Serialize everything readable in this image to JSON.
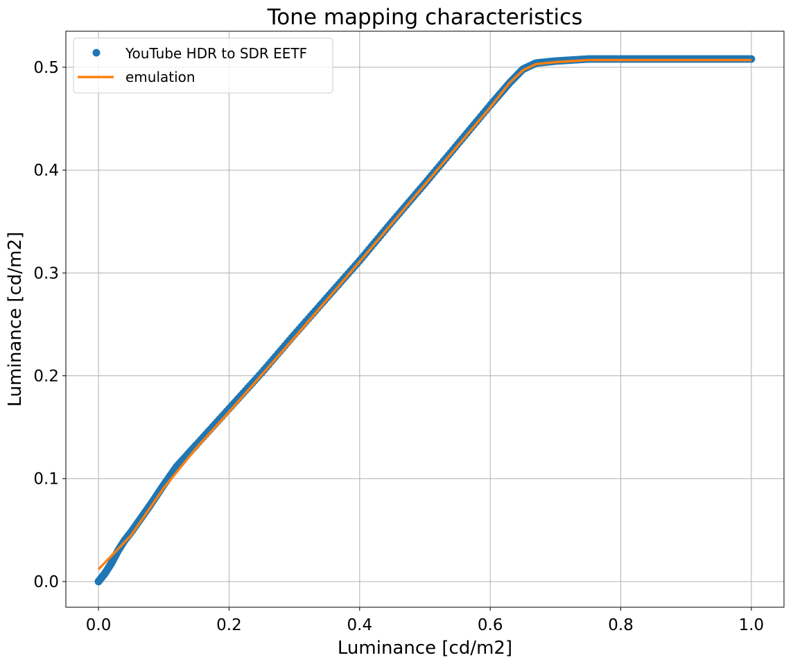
{
  "chart_data": {
    "type": "scatter",
    "title": "Tone mapping characteristics",
    "xlabel": "Luminance [cd/m2]",
    "ylabel": "Luminance [cd/m2]",
    "xlim": [
      -0.05,
      1.05
    ],
    "ylim": [
      -0.025,
      0.535
    ],
    "xticks": [
      0.0,
      0.2,
      0.4,
      0.6,
      0.8,
      1.0
    ],
    "xtick_labels": [
      "0.0",
      "0.2",
      "0.4",
      "0.6",
      "0.8",
      "1.0"
    ],
    "yticks": [
      0.0,
      0.1,
      0.2,
      0.3,
      0.4,
      0.5
    ],
    "ytick_labels": [
      "0.0",
      "0.1",
      "0.2",
      "0.3",
      "0.4",
      "0.5"
    ],
    "grid": true,
    "legend_position": "upper-left",
    "series": [
      {
        "name": "YouTube HDR to SDR EETF",
        "kind": "scatter",
        "color": "#1f77b4",
        "x": [
          0.0,
          0.01,
          0.02,
          0.03,
          0.04,
          0.05,
          0.06,
          0.07,
          0.08,
          0.1,
          0.12,
          0.15,
          0.2,
          0.25,
          0.3,
          0.35,
          0.4,
          0.45,
          0.5,
          0.55,
          0.6,
          0.63,
          0.65,
          0.67,
          0.7,
          0.75,
          0.8,
          0.85,
          0.9,
          0.95,
          1.0
        ],
        "y": [
          0.0,
          0.008,
          0.018,
          0.03,
          0.04,
          0.048,
          0.057,
          0.066,
          0.075,
          0.094,
          0.112,
          0.133,
          0.168,
          0.203,
          0.24,
          0.276,
          0.312,
          0.35,
          0.387,
          0.425,
          0.463,
          0.485,
          0.498,
          0.504,
          0.506,
          0.508,
          0.508,
          0.508,
          0.508,
          0.508,
          0.508
        ]
      },
      {
        "name": "emulation",
        "kind": "line",
        "color": "#ff7f0e",
        "x": [
          0.0,
          0.02,
          0.05,
          0.1,
          0.15,
          0.2,
          0.3,
          0.4,
          0.5,
          0.6,
          0.63,
          0.65,
          0.67,
          0.7,
          0.75,
          0.8,
          0.9,
          1.0
        ],
        "y": [
          0.012,
          0.025,
          0.045,
          0.091,
          0.13,
          0.165,
          0.237,
          0.311,
          0.386,
          0.461,
          0.485,
          0.497,
          0.503,
          0.505,
          0.507,
          0.507,
          0.507,
          0.507
        ]
      }
    ]
  }
}
